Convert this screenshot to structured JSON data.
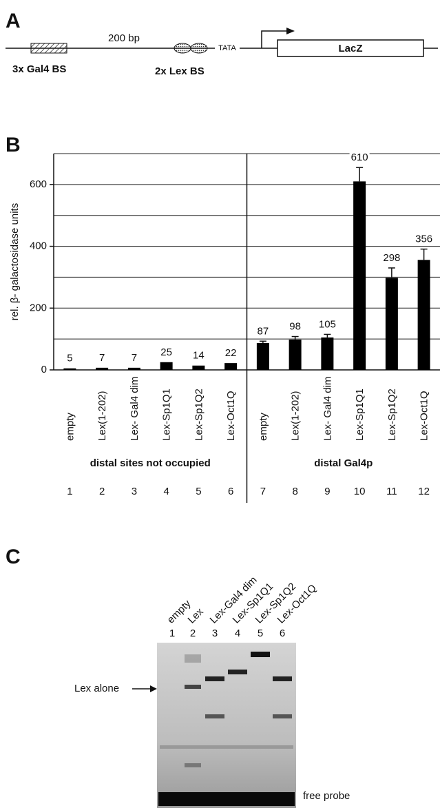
{
  "panel_a": {
    "label": "A",
    "distance": "200 bp",
    "tata": "TATA",
    "gene": "LacZ",
    "gal4_sites": "3x Gal4 BS",
    "lex_sites": "2x Lex BS"
  },
  "chart_data": {
    "type": "bar",
    "panel_label": "B",
    "ylabel": "rel. β- galactosidase units",
    "categories": [
      "empty",
      "Lex(1-202)",
      "Lex- Gal4 dim",
      "Lex-Sp1Q1",
      "Lex-Sp1Q2",
      "Lex-Oct1Q",
      "empty",
      "Lex(1-202)",
      "Lex- Gal4 dim",
      "Lex-Sp1Q1",
      "Lex-Sp1Q2",
      "Lex-Oct1Q"
    ],
    "values": [
      5,
      7,
      7,
      25,
      14,
      22,
      87,
      98,
      105,
      610,
      298,
      356
    ],
    "errors": [
      null,
      null,
      null,
      null,
      null,
      null,
      6,
      10,
      10,
      45,
      32,
      35
    ],
    "lane_numbers": [
      "1",
      "2",
      "3",
      "4",
      "5",
      "6",
      "7",
      "8",
      "9",
      "10",
      "11",
      "12"
    ],
    "groups": [
      "distal sites not occupied",
      "distal Gal4p"
    ],
    "color": "#000000",
    "ylim": [
      0,
      700
    ],
    "yticks": [
      0,
      200,
      400,
      600
    ],
    "minor_yticks": [
      100,
      300,
      500,
      700
    ],
    "grid": true
  },
  "panel_c": {
    "label": "C",
    "lanes": [
      "empty",
      "Lex",
      "Lex-Gal4 dim",
      "Lex-Sp1Q1",
      "Lex-Sp1Q2",
      "Lex-Oct1Q"
    ],
    "lane_numbers": [
      "1",
      "2",
      "3",
      "4",
      "5",
      "6"
    ],
    "marker": "Lex alone",
    "free_probe": "free probe"
  }
}
